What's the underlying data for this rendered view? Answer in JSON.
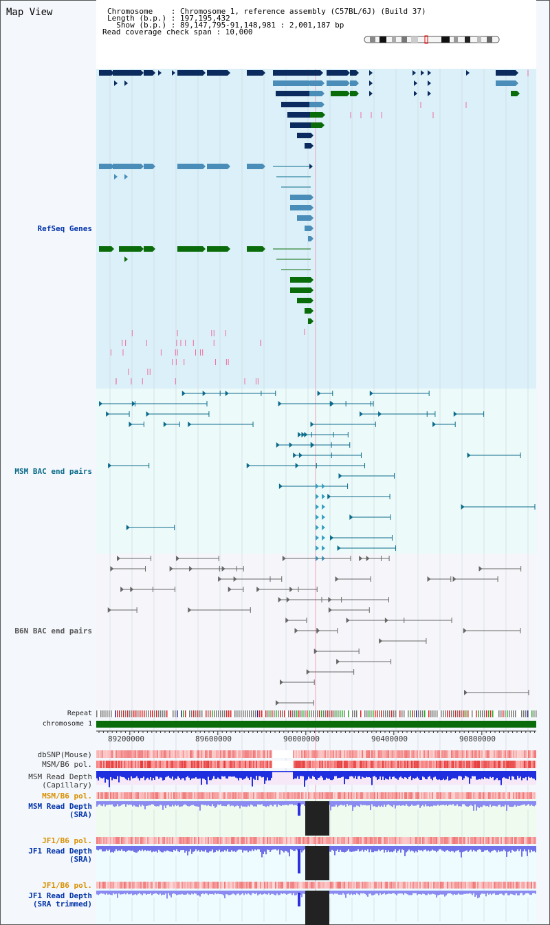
{
  "view_title": "Map View",
  "header": {
    "chromosome_line": "Chromosome    : Chromosome 1, reference assembly (C57BL/6J) (Build 37)",
    "length_line": "Length (b.p.) : 197,195,432",
    "show_line": "  Show (b.p.) : 89,147,795-91,148,981 : 2,001,187 bp",
    "coverage_line": "Read coverage check span : 10,000"
  },
  "tracks": {
    "refseq": "RefSeq Genes",
    "msm_bac": "MSM BAC end pairs",
    "b6n_bac": "B6N BAC end pairs",
    "repeat": "Repeat",
    "chromosome": "chromosome 1",
    "dbsnp": "dbSNP(Mouse)",
    "msm_b6_pol": "MSM/B6 pol.",
    "msm_read_depth_cap_1": "MSM Read Depth",
    "msm_read_depth_cap_2": "(Capillary)",
    "msm_b6_pol_2": "MSM/B6 pol.",
    "msm_read_depth_sra_1": "MSM Read Depth",
    "msm_read_depth_sra_2": "(SRA)",
    "jf1_b6_pol": "JF1/B6 pol.",
    "jf1_read_depth_1": "JF1 Read Depth",
    "jf1_read_depth_2": "(SRA)",
    "jf1_b6_pol_2": "JF1/B6 pol.",
    "jf1_read_depth_trim_1": "JF1 Read Depth",
    "jf1_read_depth_trim_2": "(SRA trimmed)"
  },
  "axis": {
    "ticks": [
      "89200000",
      "89600000",
      "90000000",
      "90400000",
      "90800000"
    ]
  },
  "colors": {
    "refseq_bg": "#dbf0f8",
    "bac_bg": "#edfafa",
    "navy": "#0b2a5e",
    "steel": "#4a8db8",
    "green": "#0a6b0a",
    "teal": "#0a6b8a",
    "grey": "#666666",
    "chrom_green": "#0a6b0a"
  }
}
